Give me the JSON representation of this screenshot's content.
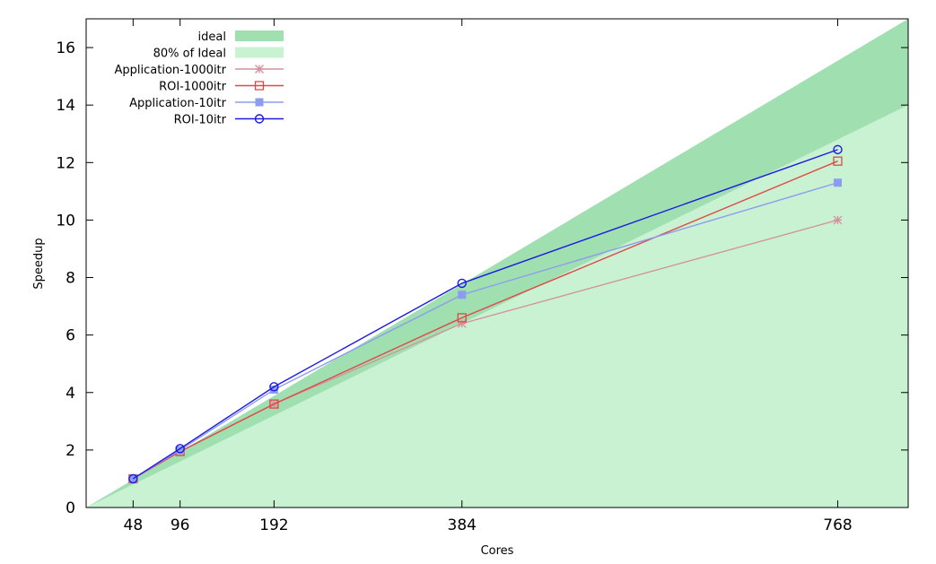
{
  "chart_data": {
    "type": "line",
    "xlabel": "Cores",
    "ylabel": "Speedup",
    "xlim": [
      0,
      840
    ],
    "ylim": [
      0,
      17
    ],
    "x_ticks": [
      48,
      96,
      192,
      384,
      768
    ],
    "y_ticks": [
      0,
      2,
      4,
      6,
      8,
      10,
      12,
      14,
      16
    ],
    "grid": false,
    "legend_position": "top-left",
    "bands": [
      {
        "name": "ideal",
        "color": "#a0dfb0",
        "lower": "80% of ideal",
        "upper": "ideal",
        "ideal_slope_per_core": 0.020833
      },
      {
        "name": "80% of Ideal",
        "color": "#c8f2d2",
        "lower": "zero",
        "upper": "80% of ideal"
      }
    ],
    "series": [
      {
        "name": "Application-1000itr",
        "color": "#d4919c",
        "marker": "star",
        "x": [
          48,
          96,
          192,
          384,
          768
        ],
        "y": [
          1.0,
          1.95,
          3.6,
          6.4,
          10.0
        ]
      },
      {
        "name": "ROI-1000itr",
        "color": "#e04848",
        "marker": "open-square",
        "x": [
          48,
          96,
          192,
          384,
          768
        ],
        "y": [
          1.0,
          1.95,
          3.6,
          6.6,
          12.05
        ]
      },
      {
        "name": "Application-10itr",
        "color": "#8c9cf0",
        "marker": "filled-square",
        "x": [
          48,
          96,
          192,
          384,
          768
        ],
        "y": [
          1.0,
          2.0,
          4.1,
          7.4,
          11.3
        ]
      },
      {
        "name": "ROI-10itr",
        "color": "#1a1ae0",
        "marker": "open-circle",
        "x": [
          48,
          96,
          192,
          384,
          768
        ],
        "y": [
          1.0,
          2.05,
          4.2,
          7.8,
          12.45
        ]
      }
    ]
  }
}
